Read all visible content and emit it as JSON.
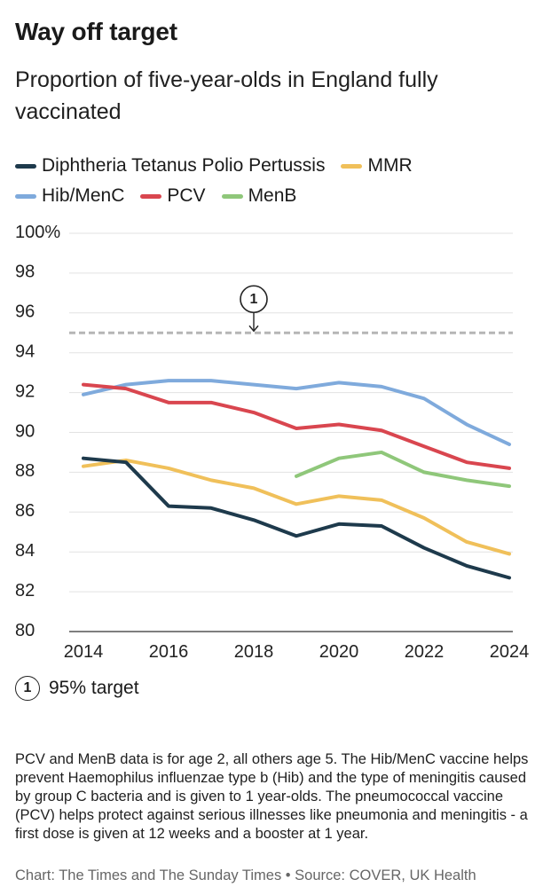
{
  "chart_data": {
    "type": "line",
    "title": "Way off target",
    "subtitle": "Proportion of five-year-olds in England fully vaccinated",
    "xlabel": "",
    "ylabel": "",
    "xlim": [
      2014,
      2024
    ],
    "ylim": [
      80,
      100
    ],
    "x_ticks": [
      "2014",
      "2016",
      "2018",
      "2020",
      "2022",
      "2024"
    ],
    "y_ticks": [
      "100%",
      "98",
      "96",
      "94",
      "92",
      "90",
      "88",
      "86",
      "84",
      "82",
      "80"
    ],
    "target": {
      "value": 95,
      "badge": "1",
      "label": "95% target"
    },
    "series": [
      {
        "name": "Diphtheria Tetanus Polio Pertussis",
        "color": "#1e3a4c",
        "x": [
          2014,
          2015,
          2016,
          2017,
          2018,
          2019,
          2020,
          2021,
          2022,
          2023,
          2024
        ],
        "values": [
          88.7,
          88.5,
          86.3,
          86.2,
          85.6,
          84.8,
          85.4,
          85.3,
          84.2,
          83.3,
          82.7
        ]
      },
      {
        "name": "MMR",
        "color": "#f0c05a",
        "x": [
          2014,
          2015,
          2016,
          2017,
          2018,
          2019,
          2020,
          2021,
          2022,
          2023,
          2024
        ],
        "values": [
          88.3,
          88.6,
          88.2,
          87.6,
          87.2,
          86.4,
          86.8,
          86.6,
          85.7,
          84.5,
          83.9
        ]
      },
      {
        "name": "Hib/MenC",
        "color": "#7faadc",
        "x": [
          2014,
          2015,
          2016,
          2017,
          2018,
          2019,
          2020,
          2021,
          2022,
          2023,
          2024
        ],
        "values": [
          91.9,
          92.4,
          92.6,
          92.6,
          92.4,
          92.2,
          92.5,
          92.3,
          91.7,
          90.4,
          89.4
        ]
      },
      {
        "name": "PCV",
        "color": "#d9464f",
        "x": [
          2014,
          2015,
          2016,
          2017,
          2018,
          2019,
          2020,
          2021,
          2022,
          2023,
          2024
        ],
        "values": [
          92.4,
          92.2,
          91.5,
          91.5,
          91.0,
          90.2,
          90.4,
          90.1,
          89.3,
          88.5,
          88.2
        ]
      },
      {
        "name": "MenB",
        "color": "#8fc77a",
        "x": [
          2019,
          2020,
          2021,
          2022,
          2023,
          2024
        ],
        "values": [
          87.8,
          88.7,
          89.0,
          88.0,
          87.6,
          87.3
        ]
      }
    ],
    "legend_order": [
      [
        0,
        1
      ],
      [
        2,
        3,
        4
      ]
    ],
    "legend_position": "top-left"
  },
  "note": {
    "badge": "1",
    "text": "95% target"
  },
  "footnote": "PCV and MenB data is for age 2, all others age 5. The Hib/MenC vaccine helps prevent Haemophilus influenzae type b (Hib) and the type of meningitis caused by group C bacteria and is given to 1 year-olds. The pneumococcal vaccine (PCV) helps protect against serious illnesses like pneumonia and meningitis - a first dose is given at 12 weeks and a booster at 1 year.",
  "source": "Chart: The Times and The Sunday Times • Source: COVER, UK Health"
}
